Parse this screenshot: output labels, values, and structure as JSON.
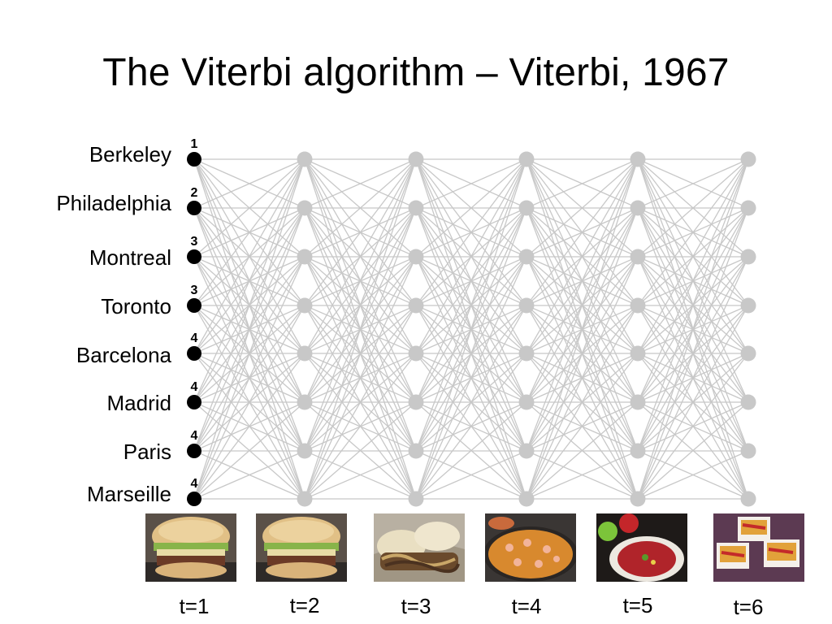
{
  "title": "The Viterbi algorithm – Viterbi, 1967",
  "states": [
    "Berkeley",
    "Philadelphia",
    "Montreal",
    "Toronto",
    "Barcelona",
    "Madrid",
    "Paris",
    "Marseille"
  ],
  "scores": [
    "1",
    "2",
    "3",
    "3",
    "4",
    "4",
    "4",
    "4"
  ],
  "time_steps": [
    "t=1",
    "t=2",
    "t=3",
    "t=4",
    "t=5",
    "t=6"
  ],
  "observations": [
    {
      "icon": "hamburger-icon"
    },
    {
      "icon": "hamburger-icon"
    },
    {
      "icon": "cheesesteak-icon"
    },
    {
      "icon": "paella-icon"
    },
    {
      "icon": "gazpacho-icon"
    },
    {
      "icon": "pizza-slices-icon"
    }
  ],
  "colors": {
    "active_node": "#000000",
    "inactive_node": "#c8c8c8",
    "edge": "#c8c8c8"
  }
}
